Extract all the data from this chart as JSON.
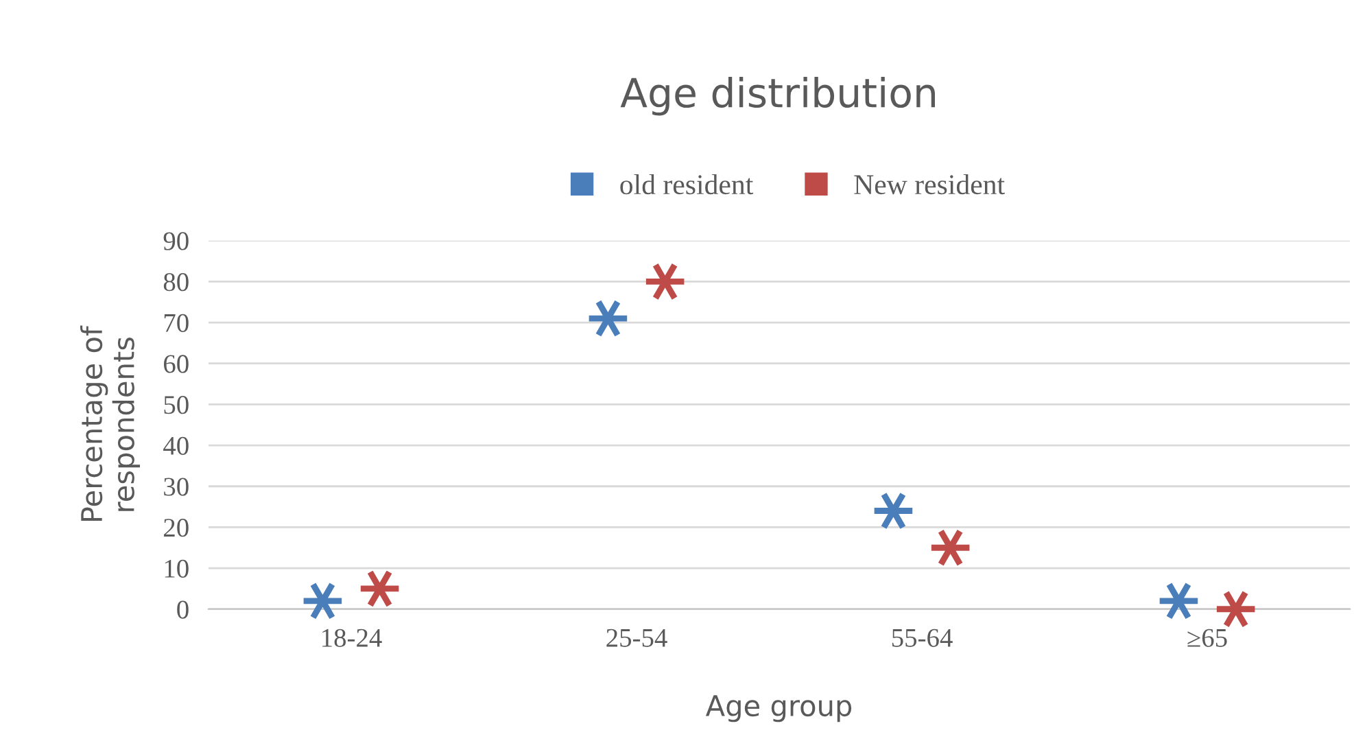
{
  "chart_data": {
    "type": "scatter",
    "title": "Age distribution",
    "xlabel": "Age group",
    "ylabel": "Percentage of\nrespondents",
    "categories": [
      "18-24",
      "25-54",
      "55-64",
      "≥65"
    ],
    "series": [
      {
        "name": "old resident",
        "color": "#4a7ebb",
        "values": [
          2,
          71,
          24,
          2
        ]
      },
      {
        "name": "New resident",
        "color": "#be4b48",
        "values": [
          5,
          80,
          15,
          0
        ]
      }
    ],
    "ylim": [
      0,
      90
    ],
    "yticks": [
      0,
      10,
      20,
      30,
      40,
      50,
      60,
      70,
      80,
      90
    ],
    "grid": "y",
    "legend": "top",
    "marker": "cross"
  }
}
